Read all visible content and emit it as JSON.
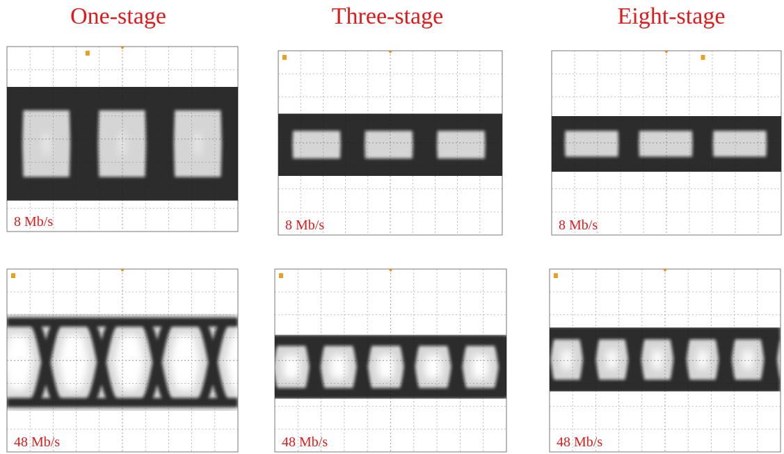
{
  "columns": [
    {
      "title": "One-stage",
      "panels": [
        {
          "label": "8 Mb/s"
        },
        {
          "label": "48 Mb/s"
        }
      ]
    },
    {
      "title": "Three-stage",
      "panels": [
        {
          "label": "8 Mb/s"
        },
        {
          "label": "48 Mb/s"
        }
      ]
    },
    {
      "title": "Eight-stage",
      "panels": [
        {
          "label": "8 Mb/s"
        },
        {
          "label": "48 Mb/s"
        }
      ]
    }
  ]
}
